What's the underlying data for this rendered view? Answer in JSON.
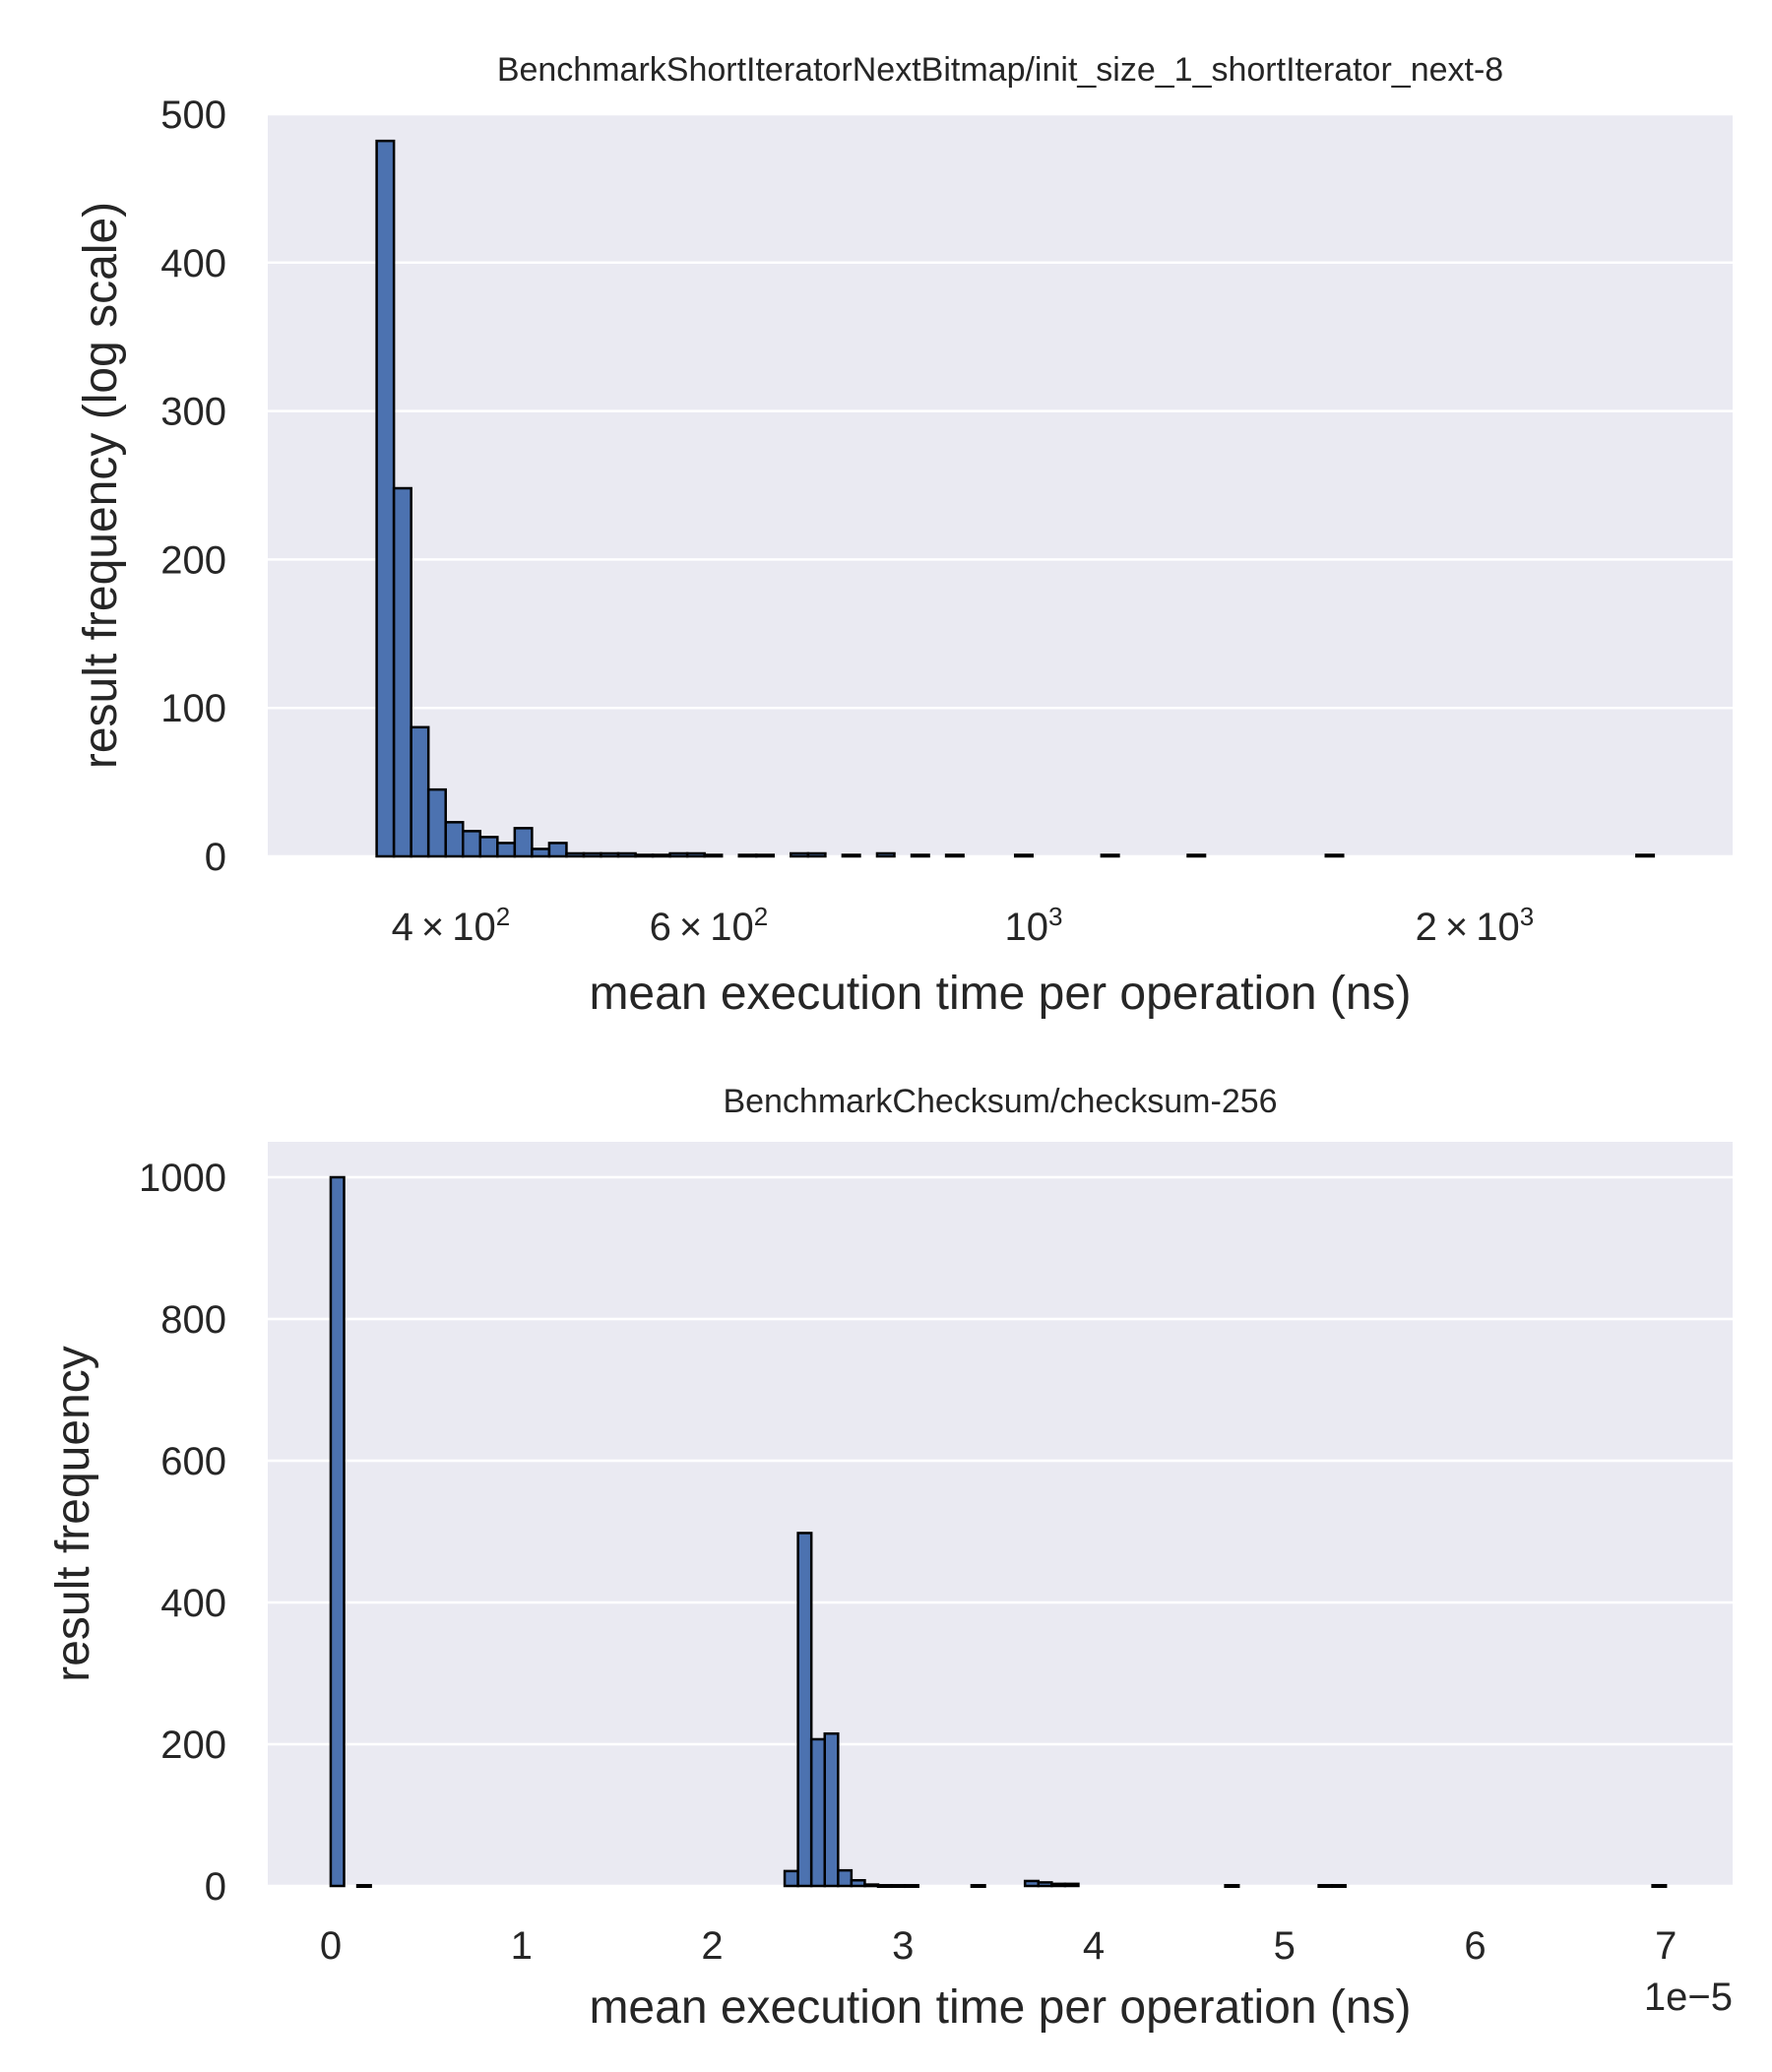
{
  "style": {
    "bar_color": "#4C72B0",
    "bar_edge_color": "#000000",
    "panel_background": "#EAEAF2",
    "grid_color": "#FFFFFF",
    "text_color": "#262626"
  },
  "chart_data": [
    {
      "type": "histogram",
      "title": "BenchmarkShortIteratorNextBitmap/init_size_1_shortIterator_next-8",
      "xlabel": "mean execution time per operation (ns)",
      "ylabel": "result frequency (log scale)",
      "xscale": "log",
      "xlim": [
        300,
        3000
      ],
      "ylim": [
        0,
        500
      ],
      "grid": true,
      "yticks": [
        0,
        100,
        200,
        300,
        400,
        500
      ],
      "xticks": [
        {
          "value": 400,
          "mant": "4",
          "exp": "2"
        },
        {
          "value": 600,
          "mant": "6",
          "exp": "2"
        },
        {
          "value": 1000,
          "mant": "",
          "exp": "3"
        },
        {
          "value": 2000,
          "mant": "2",
          "exp": "3"
        }
      ],
      "bins": {
        "start": 356,
        "end": 2650,
        "counts": [
          482,
          248,
          87,
          45,
          23,
          17,
          13,
          9,
          19,
          5,
          9,
          2,
          2,
          2,
          2,
          1,
          1,
          2,
          2,
          1,
          0,
          1,
          1,
          0,
          2,
          2,
          0,
          1,
          0,
          2,
          0,
          1,
          0,
          1,
          0,
          0,
          0,
          1,
          0,
          0,
          0,
          0,
          1,
          0,
          0,
          0,
          0,
          1,
          0,
          0,
          0,
          0,
          0,
          0,
          0,
          1,
          0,
          0,
          0,
          0,
          0,
          0,
          0,
          0,
          0,
          0,
          0,
          0,
          0,
          0,
          0,
          0,
          0,
          1
        ]
      }
    },
    {
      "type": "histogram",
      "title": "BenchmarkChecksum/checksum-256",
      "xlabel": "mean execution time per operation (ns)",
      "ylabel": "result frequency",
      "xscale": "linear",
      "xlim": [
        -3.3e-06,
        7.35e-05
      ],
      "ylim": [
        0,
        1050
      ],
      "x_offset_label": "1e−5",
      "grid": true,
      "yticks": [
        0,
        200,
        400,
        600,
        800,
        1000
      ],
      "xticks": [
        {
          "value": 0,
          "label": "0"
        },
        {
          "value": 1e-05,
          "label": "1"
        },
        {
          "value": 2e-05,
          "label": "2"
        },
        {
          "value": 3e-05,
          "label": "3"
        },
        {
          "value": 4e-05,
          "label": "4"
        },
        {
          "value": 5e-05,
          "label": "5"
        },
        {
          "value": 6e-05,
          "label": "6"
        },
        {
          "value": 7e-05,
          "label": "7"
        }
      ],
      "bins": {
        "start": 0,
        "end": 7e-05,
        "counts": [
          1000,
          0,
          1,
          0,
          0,
          0,
          0,
          0,
          0,
          0,
          0,
          0,
          0,
          0,
          0,
          0,
          0,
          0,
          0,
          0,
          0,
          0,
          0,
          0,
          0,
          0,
          0,
          0,
          0,
          0,
          0,
          0,
          0,
          0,
          21,
          498,
          207,
          215,
          22,
          8,
          2,
          1,
          1,
          1,
          0,
          0,
          0,
          0,
          1,
          0,
          0,
          0,
          7,
          5,
          3,
          3,
          0,
          0,
          0,
          0,
          0,
          0,
          0,
          0,
          0,
          0,
          0,
          1,
          0,
          0,
          0,
          0,
          0,
          0,
          1,
          1,
          0,
          0,
          0,
          0,
          0,
          0,
          0,
          0,
          0,
          0,
          0,
          0,
          0,
          0,
          0,
          0,
          0,
          0,
          0,
          0,
          0,
          0,
          0,
          1
        ]
      }
    }
  ]
}
